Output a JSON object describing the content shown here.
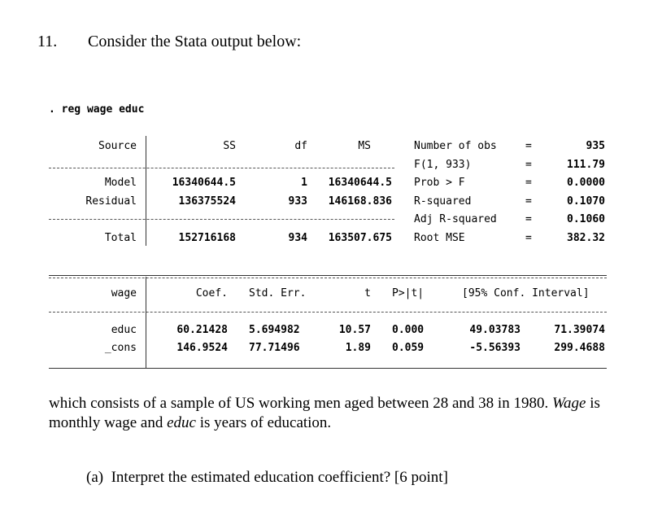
{
  "question": {
    "number": "11.",
    "intro": "Consider the Stata output below:",
    "command": ". reg wage educ",
    "after_text_1": "which consists of a sample of US working men aged between 28 and 38 in 1980. ",
    "after_wage": "Wage",
    "after_text_2": " is",
    "after_text_3": "monthly wage and ",
    "after_educ": "educ",
    "after_text_4": " is years of education.",
    "part_a": "(a)  Interpret the estimated education coefficient? [6 point]"
  },
  "anova": {
    "headers": [
      "Source",
      "SS",
      "df",
      "MS"
    ],
    "rows": [
      {
        "source": "Model",
        "ss": "16340644.5",
        "df": "1",
        "ms": "16340644.5"
      },
      {
        "source": "Residual",
        "ss": "136375524",
        "df": "933",
        "ms": "146168.836"
      },
      {
        "source": "Total",
        "ss": "152716168",
        "df": "934",
        "ms": "163507.675"
      }
    ],
    "stats": [
      {
        "label": "Number of obs",
        "eq": "=",
        "value": "935"
      },
      {
        "label": "F(1, 933)",
        "eq": "=",
        "value": "111.79"
      },
      {
        "label": "Prob > F",
        "eq": "=",
        "value": "0.0000"
      },
      {
        "label": "R-squared",
        "eq": "=",
        "value": "0.1070"
      },
      {
        "label": "Adj R-squared",
        "eq": "=",
        "value": "0.1060"
      },
      {
        "label": "Root MSE",
        "eq": "=",
        "value": "382.32"
      }
    ]
  },
  "coef": {
    "headers": [
      "wage",
      "Coef.",
      "Std. Err.",
      "t",
      "P>|t|",
      "[95% Conf. Interval]"
    ],
    "rows": [
      {
        "var": "educ",
        "coef": "60.21428",
        "se": "5.694982",
        "t": "10.57",
        "p": "0.000",
        "lo": "49.03783",
        "hi": "71.39074"
      },
      {
        "var": "_cons",
        "coef": "146.9524",
        "se": "77.71496",
        "t": "1.89",
        "p": "0.059",
        "lo": "-5.56393",
        "hi": "299.4688"
      }
    ]
  }
}
